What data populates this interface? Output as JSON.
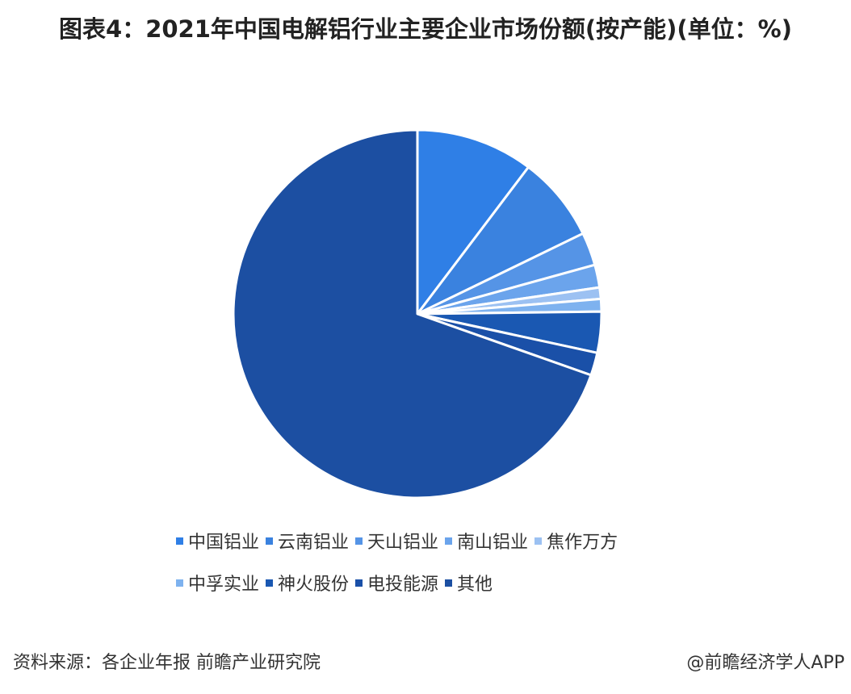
{
  "chart_data": {
    "type": "pie",
    "title": "图表4：2021年中国电解铝行业主要企业市场份额(按产能)(单位：%)",
    "categories": [
      "中国铝业",
      "云南铝业",
      "天山铝业",
      "南山铝业",
      "焦作万方",
      "中孚实业",
      "神火股份",
      "电投能源",
      "其他"
    ],
    "values": [
      10.3,
      7.5,
      2.9,
      2.0,
      1.0,
      1.1,
      3.6,
      2.0,
      69.6
    ],
    "colors": [
      "#2f7fe6",
      "#3a82df",
      "#5594e6",
      "#6ba4ec",
      "#9cc1f2",
      "#7eb2ef",
      "#1a58b2",
      "#1a50a8",
      "#1c4fa2"
    ],
    "source": "资料来源：各企业年报 前瞻产业研究院",
    "credit": "@前瞻经济学人APP"
  }
}
